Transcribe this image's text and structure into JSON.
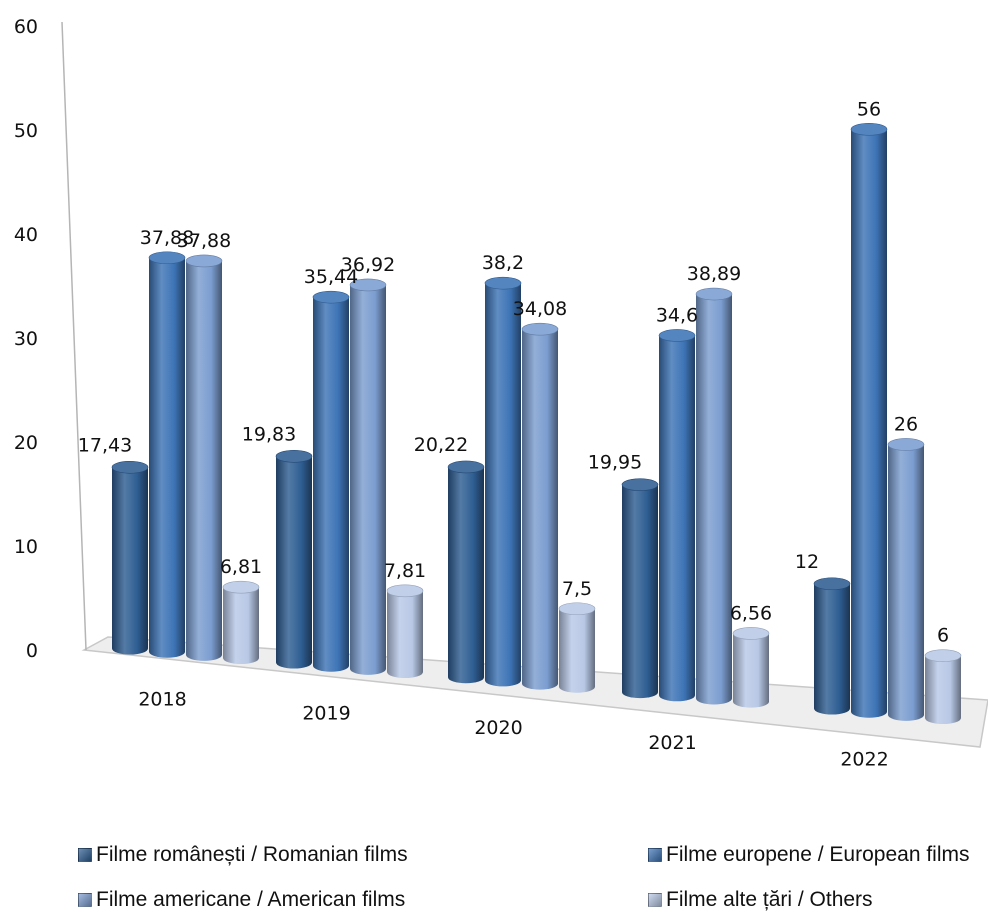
{
  "chart_data": {
    "type": "bar",
    "categories": [
      "2018",
      "2019",
      "2020",
      "2021",
      "2022"
    ],
    "series": [
      {
        "name": "Filme românești / Romanian films",
        "values": [
          17.43,
          19.83,
          20.22,
          19.95,
          12
        ],
        "labels": [
          "17,43",
          "19,83",
          "20,22",
          "19,95",
          "12"
        ],
        "color": "#2f5e93"
      },
      {
        "name": "Filme europene / European films",
        "values": [
          37.88,
          35.44,
          38.2,
          34.6,
          56
        ],
        "labels": [
          "37,88",
          "35,44",
          "38,2",
          "34,6",
          "56"
        ],
        "color": "#3d74b6"
      },
      {
        "name": "Filme americane / American films",
        "values": [
          37.88,
          36.92,
          34.08,
          38.89,
          26
        ],
        "labels": [
          "37,88",
          "36,92",
          "34,08",
          "38,89",
          "26"
        ],
        "color": "#7b9dd0"
      },
      {
        "name": "Filme alte țări / Others",
        "values": [
          6.81,
          7.81,
          7.5,
          6.56,
          6
        ],
        "labels": [
          "6,81",
          "7,81",
          "7,5",
          "6,56",
          "6"
        ],
        "color": "#b8c8e6"
      }
    ],
    "ylim": [
      0,
      60
    ],
    "yticks": [
      "0",
      "10",
      "20",
      "30",
      "40",
      "50",
      "60"
    ],
    "title": "",
    "xlabel": "",
    "ylabel": "",
    "legend": "bottom",
    "grid": false,
    "style": "3d-cylinder"
  }
}
